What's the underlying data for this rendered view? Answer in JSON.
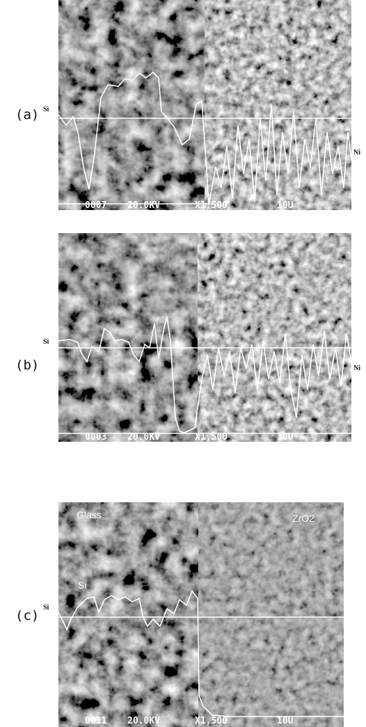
{
  "panels": [
    {
      "label": "(a)",
      "left_marker": "Si",
      "right_marker": "Ni",
      "info": [
        "0007",
        "20.0KV",
        "X1,500",
        "10U"
      ]
    },
    {
      "label": "(b)",
      "left_marker": "Si",
      "right_marker": "Ni",
      "info": [
        "0003",
        "20.0KV",
        "X1,500",
        "10U"
      ]
    },
    {
      "label": "(c)",
      "left_marker": "Si",
      "inner_labels": [
        "Glass",
        "Si",
        "ZrO2"
      ],
      "info": [
        "0011",
        "20.0KV",
        "X1,500",
        "10U"
      ]
    }
  ]
}
